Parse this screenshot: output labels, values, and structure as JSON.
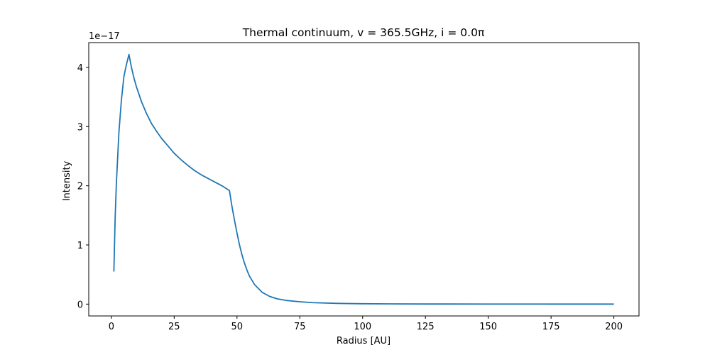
{
  "chart_data": {
    "type": "line",
    "title": "Thermal continuum, v = 365.5GHz, i = 0.0π",
    "xlabel": "Radius [AU]",
    "ylabel": "Intensity",
    "offset_text": "1e−17",
    "xlim": [
      -9,
      210
    ],
    "ylim": [
      -0.2,
      4.42
    ],
    "y_scale_factor": "1e-17",
    "grid": false,
    "legend": "none",
    "x_ticks": [
      0,
      25,
      50,
      75,
      100,
      125,
      150,
      175,
      200
    ],
    "x_tick_labels": [
      "0",
      "25",
      "50",
      "75",
      "100",
      "125",
      "150",
      "175",
      "200"
    ],
    "y_ticks": [
      0,
      1,
      2,
      3,
      4
    ],
    "y_tick_labels": [
      "0",
      "1",
      "2",
      "3",
      "4"
    ],
    "series": [
      {
        "color": "#1f77b4",
        "x": [
          1,
          1.5,
          2,
          3,
          4,
          5,
          6,
          7,
          8,
          9,
          10,
          12,
          14,
          16,
          18,
          20,
          22,
          25,
          28,
          30,
          33,
          36,
          40,
          44,
          47,
          48,
          49,
          50,
          51,
          52,
          53,
          54,
          55,
          57,
          60,
          63,
          66,
          70,
          75,
          80,
          90,
          100,
          110,
          125,
          150,
          175,
          200
        ],
        "y": [
          0.55,
          1.45,
          2.05,
          2.9,
          3.45,
          3.85,
          4.05,
          4.22,
          4.0,
          3.82,
          3.67,
          3.42,
          3.22,
          3.05,
          2.92,
          2.8,
          2.7,
          2.55,
          2.43,
          2.36,
          2.26,
          2.18,
          2.09,
          2.0,
          1.92,
          1.65,
          1.42,
          1.2,
          1.0,
          0.83,
          0.69,
          0.57,
          0.47,
          0.33,
          0.2,
          0.13,
          0.09,
          0.06,
          0.04,
          0.025,
          0.012,
          0.006,
          0.004,
          0.002,
          0.001,
          0.0005,
          0.0003
        ]
      }
    ]
  }
}
